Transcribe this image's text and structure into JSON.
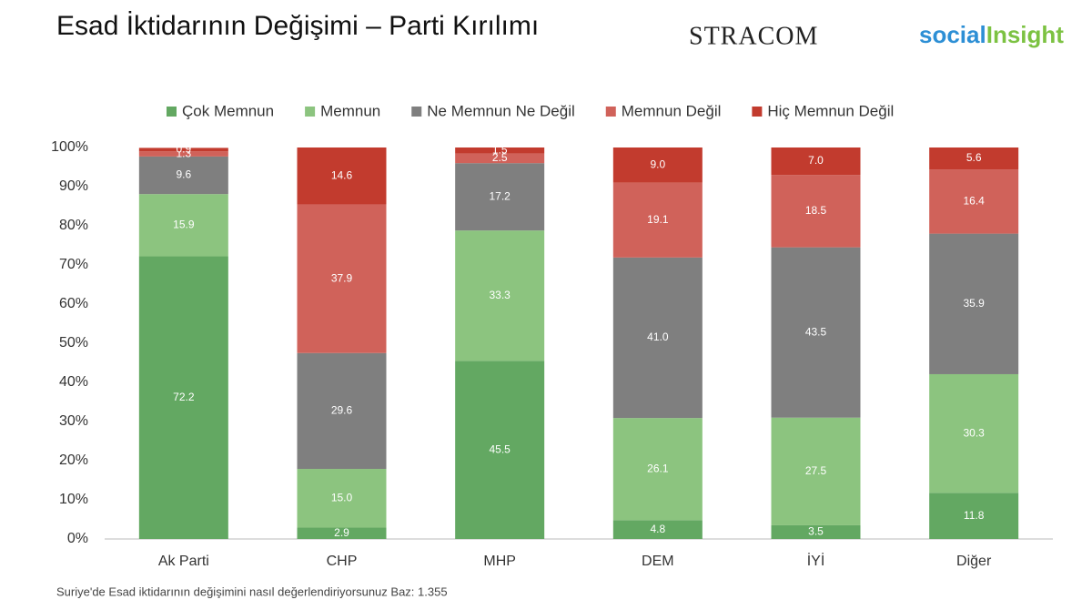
{
  "logos": {
    "left": "STRACOM",
    "right_a": "social",
    "right_b": "Insight"
  },
  "chart_data": {
    "type": "stacked_bar",
    "title": "Esad İktidarının Değişimi – Parti Kırılımı",
    "footnote": "Suriye'de Esad iktidarının değişimini nasıl değerlendiriyorsunuz   Baz: 1.355",
    "categories": [
      "Ak Parti",
      "CHP",
      "MHP",
      "DEM",
      "İYİ",
      "Diğer"
    ],
    "series": [
      {
        "name": "Çok Memnun",
        "color": "#63a862",
        "values": [
          72.2,
          2.9,
          45.5,
          4.8,
          3.5,
          11.8
        ],
        "value_labels": [
          "72.2",
          "2.9",
          "45.5",
          "4.8",
          "3.5",
          "11.8"
        ]
      },
      {
        "name": "Memnun",
        "color": "#8cc47f",
        "values": [
          15.9,
          15.0,
          33.3,
          26.1,
          27.5,
          30.3
        ],
        "value_labels": [
          "15.9",
          "15.0",
          "33.3",
          "26.1",
          "27.5",
          "30.3"
        ]
      },
      {
        "name": "Ne Memnun Ne Değil",
        "color": "#7f7f7f",
        "values": [
          9.6,
          29.6,
          17.2,
          41.0,
          43.5,
          35.9
        ],
        "value_labels": [
          "9.6",
          "29.6",
          "17.2",
          "41.0",
          "43.5",
          "35.9"
        ]
      },
      {
        "name": "Memnun Değil",
        "color": "#d0625a",
        "values": [
          1.3,
          37.9,
          2.5,
          19.1,
          18.5,
          16.4
        ],
        "value_labels": [
          "1.3",
          "37.9",
          "2.5",
          "19.1",
          "18.5",
          "16.4"
        ]
      },
      {
        "name": "Hiç Memnun Değil",
        "color": "#c23b2e",
        "values": [
          0.9,
          14.6,
          1.5,
          9.0,
          7.0,
          5.6
        ],
        "value_labels": [
          "0.9",
          "14.6",
          "1.5",
          "9.0",
          "7.0",
          "5.6"
        ]
      }
    ],
    "ylim": [
      0,
      100
    ],
    "yticks": [
      {
        "value": 0,
        "label": "0%"
      },
      {
        "value": 10,
        "label": "10%"
      },
      {
        "value": 20,
        "label": "20%"
      },
      {
        "value": 30,
        "label": "30%"
      },
      {
        "value": 40,
        "label": "40%"
      },
      {
        "value": 50,
        "label": "50%"
      },
      {
        "value": 60,
        "label": "60%"
      },
      {
        "value": 70,
        "label": "70%"
      },
      {
        "value": 80,
        "label": "80%"
      },
      {
        "value": 90,
        "label": "90%"
      },
      {
        "value": 100,
        "label": "100%"
      }
    ],
    "legend": "top"
  }
}
